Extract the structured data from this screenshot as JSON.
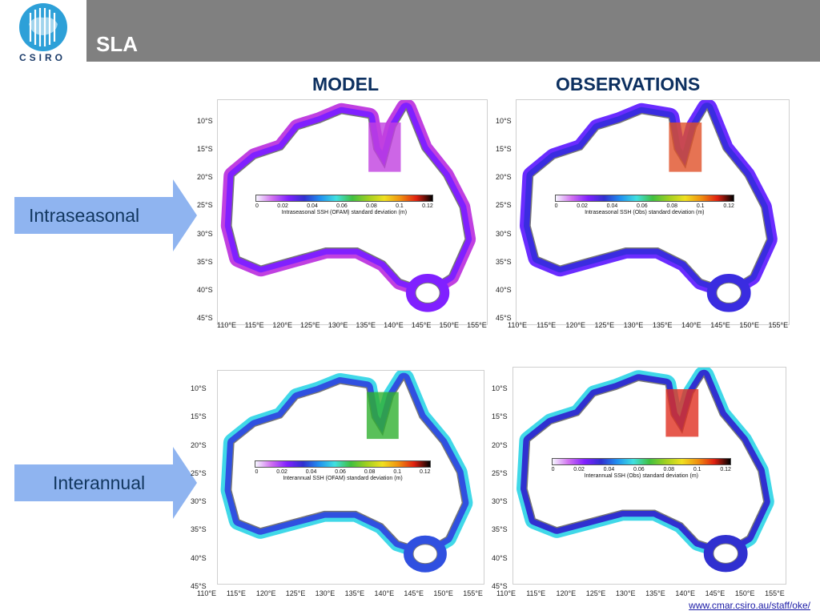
{
  "logo": {
    "text": "CSIRO"
  },
  "header": {
    "title": "SLA"
  },
  "columns": {
    "model": "MODEL",
    "observations": "OBSERVATIONS"
  },
  "rows": {
    "intraseasonal": "Intraseasonal",
    "interannual": "Interannual"
  },
  "axes": {
    "lat": [
      "10°S",
      "15°S",
      "20°S",
      "25°S",
      "30°S",
      "35°S",
      "40°S",
      "45°S"
    ],
    "lon": [
      "110°E",
      "115°E",
      "120°E",
      "125°E",
      "130°E",
      "135°E",
      "140°E",
      "145°E",
      "150°E",
      "155°E"
    ]
  },
  "colorbar": {
    "ticks": [
      "0",
      "0.02",
      "0.04",
      "0.06",
      "0.08",
      "0.1",
      "0.12"
    ]
  },
  "panels": [
    {
      "caption": "Intraseasonal SSH (OFAM) standard deviation (m)"
    },
    {
      "caption": "Intraseasonal SSH (Obs) standard deviation (m)"
    },
    {
      "caption": "Interannual SSH (OFAM) standard deviation (m)"
    },
    {
      "caption": "Interannual SSH (Obs) standard deviation (m)"
    }
  ],
  "footer": {
    "url": "www.cmar.csiro.au/staff/oke/"
  },
  "colors": {
    "header": "#808080",
    "title_text": "#0d3060",
    "arrow": "#8fb4f0"
  }
}
